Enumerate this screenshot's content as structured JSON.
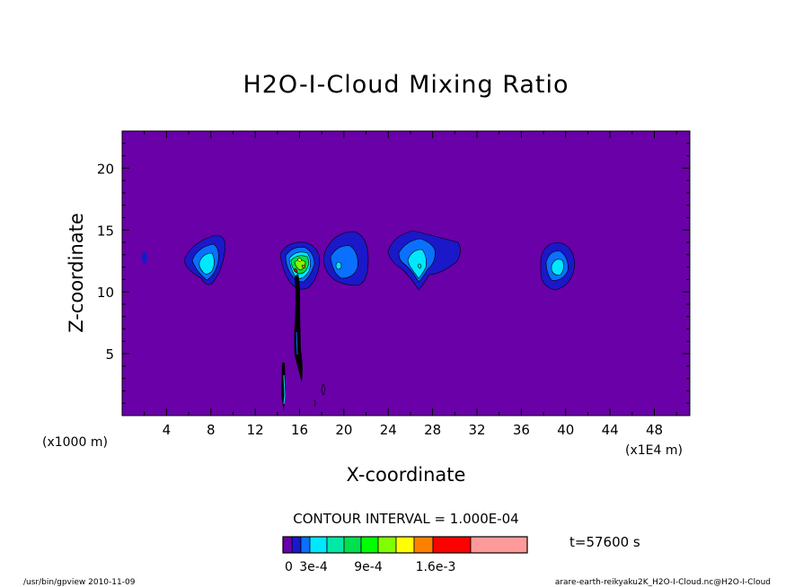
{
  "chart_data": {
    "type": "heatmap",
    "title": "H2O-I-Cloud Mixing Ratio",
    "xlabel": "X-coordinate",
    "ylabel": "Z-coordinate",
    "x_unit_note": "(x1000 m)",
    "x_scale_note": "(x1E4 m)",
    "x_ticks": [
      4,
      8,
      12,
      16,
      20,
      24,
      28,
      32,
      36,
      40,
      44,
      48
    ],
    "y_ticks": [
      5,
      10,
      15,
      20
    ],
    "xlim": [
      0,
      51.2
    ],
    "ylim": [
      0,
      23
    ],
    "grid": false,
    "contour_interval_text": "CONTOUR INTERVAL = 1.000E-04",
    "time_label": "t=57600 s",
    "colorbar": {
      "colors": [
        "#6a00a8",
        "#1a18c8",
        "#0a70ff",
        "#00e8ff",
        "#00e8a8",
        "#00e050",
        "#00ff00",
        "#80ff00",
        "#ffff00",
        "#ff8000",
        "#ff0000",
        "#ff9a9a"
      ],
      "labels": [
        "0",
        "3e-4",
        "9e-4",
        "1.6e-3"
      ],
      "label_values": [
        0,
        0.0003,
        0.0009,
        0.0016
      ]
    },
    "background_value": 0,
    "cloud_cells": [
      {
        "x": 2.1,
        "z": 12.6,
        "peak": 0.0001
      },
      {
        "x": 8.0,
        "z": 12.5,
        "peak": 0.0003
      },
      {
        "x": 16.2,
        "z": 12.4,
        "peak": 0.0016
      },
      {
        "x": 20.0,
        "z": 12.6,
        "peak": 0.0002
      },
      {
        "x": 27.0,
        "z": 12.8,
        "peak": 0.0004
      },
      {
        "x": 39.5,
        "z": 11.8,
        "peak": 0.0003
      }
    ],
    "footer_left": "/usr/bin/gpview   2010-11-09",
    "footer_right": "arare-earth-reikyaku2K_H2O-I-Cloud.nc@H2O-I-Cloud"
  }
}
